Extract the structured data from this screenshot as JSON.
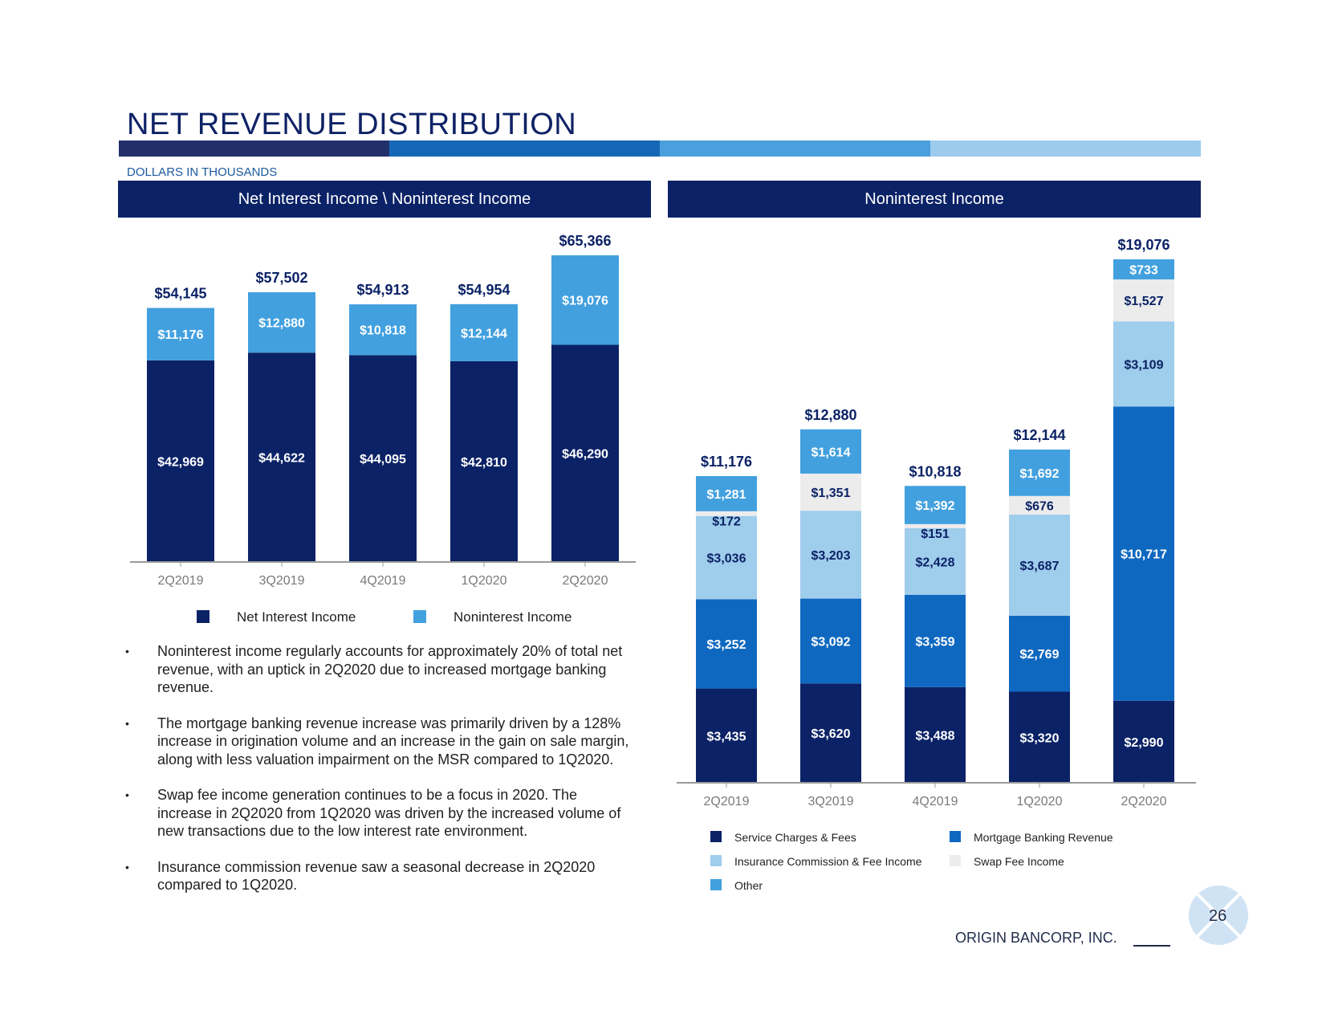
{
  "header": {
    "title": "NET REVENUE DISTRIBUTION",
    "subtitle": "DOLLARS IN THOUSANDS",
    "stripe_colors": [
      "#22306a",
      "#1667b5",
      "#4a9fdc",
      "#9ccbec"
    ]
  },
  "left_panel": {
    "title": "Net Interest Income \\ Noninterest Income"
  },
  "right_panel": {
    "title": "Noninterest Income"
  },
  "colors": {
    "net_interest": "#0b2266",
    "noninterest": "#42a0df",
    "service_charges": "#0b2266",
    "mortgage": "#0f68c0",
    "insurance": "#9fcdec",
    "swap": "#ececec",
    "other": "#42a0df",
    "axis": "#9a9a9a",
    "label_dark": "#0b2266"
  },
  "chart_data": [
    {
      "type": "bar",
      "stacked": true,
      "title": "Net Interest Income \\ Noninterest Income",
      "categories": [
        "2Q2019",
        "3Q2019",
        "4Q2019",
        "1Q2020",
        "2Q2020"
      ],
      "series": [
        {
          "name": "Net Interest Income",
          "color_key": "net_interest",
          "values": [
            42969,
            44622,
            44095,
            42810,
            46290
          ],
          "labels": [
            "$42,969",
            "$44,622",
            "$44,095",
            "$42,810",
            "$46,290"
          ]
        },
        {
          "name": "Noninterest Income",
          "color_key": "noninterest",
          "values": [
            11176,
            12880,
            10818,
            12144,
            19076
          ],
          "labels": [
            "$11,176",
            "$12,880",
            "$10,818",
            "$12,144",
            "$19,076"
          ]
        }
      ],
      "totals": [
        54145,
        57502,
        54913,
        54954,
        65366
      ],
      "total_labels": [
        "$54,145",
        "$57,502",
        "$54,913",
        "$54,954",
        "$65,366"
      ],
      "ylim": [
        0,
        70000
      ],
      "legend": [
        "Net Interest Income",
        "Noninterest Income"
      ],
      "legend_position": "bottom"
    },
    {
      "type": "bar",
      "stacked": true,
      "title": "Noninterest Income",
      "categories": [
        "2Q2019",
        "3Q2019",
        "4Q2019",
        "1Q2020",
        "2Q2020"
      ],
      "series": [
        {
          "name": "Service Charges & Fees",
          "color_key": "service_charges",
          "values": [
            3435,
            3620,
            3488,
            3320,
            2990
          ],
          "labels": [
            "$3,435",
            "$3,620",
            "$3,488",
            "$3,320",
            "$2,990"
          ]
        },
        {
          "name": "Mortgage Banking Revenue",
          "color_key": "mortgage",
          "values": [
            3252,
            3092,
            3359,
            2769,
            10717
          ],
          "labels": [
            "$3,252",
            "$3,092",
            "$3,359",
            "$2,769",
            "$10,717"
          ]
        },
        {
          "name": "Insurance Commission & Fee Income",
          "color_key": "insurance",
          "values": [
            3036,
            3203,
            2428,
            3687,
            3109
          ],
          "labels": [
            "$3,036",
            "$3,203",
            "$2,428",
            "$3,687",
            "$3,109"
          ]
        },
        {
          "name": "Swap Fee Income",
          "color_key": "swap",
          "values": [
            172,
            1351,
            151,
            676,
            1527
          ],
          "labels": [
            "$172",
            "$1,351",
            "$151",
            "$676",
            "$1,527"
          ]
        },
        {
          "name": "Other",
          "color_key": "other",
          "values": [
            1281,
            1614,
            1392,
            1692,
            733
          ],
          "labels": [
            "$1,281",
            "$1,614",
            "$1,392",
            "$1,692",
            "$733"
          ]
        }
      ],
      "totals": [
        11176,
        12880,
        10818,
        12144,
        19076
      ],
      "total_labels": [
        "$11,176",
        "$12,880",
        "$10,818",
        "$12,144",
        "$19,076"
      ],
      "ylim": [
        0,
        20000
      ],
      "legend": [
        "Service Charges & Fees",
        "Mortgage Banking Revenue",
        "Insurance Commission & Fee Income",
        "Swap Fee Income",
        "Other"
      ],
      "legend_position": "bottom"
    }
  ],
  "bullets": [
    "Noninterest income regularly accounts for approximately 20% of total net revenue, with an uptick in 2Q2020 due to increased mortgage banking revenue.",
    "The mortgage banking revenue increase was primarily driven by a 128% increase in origination volume and an increase in the gain on sale margin, along with less valuation impairment on the MSR compared to 1Q2020.",
    "Swap fee income generation continues to be a focus in 2020. The increase in 2Q2020 from 1Q2020 was driven by the increased volume of new transactions due to the low interest rate environment.",
    "Insurance commission revenue saw a seasonal decrease in 2Q2020 compared to 1Q2020."
  ],
  "bullet_symbol": "•",
  "footer": {
    "company": "ORIGIN BANCORP, INC.",
    "page_number": "26"
  }
}
